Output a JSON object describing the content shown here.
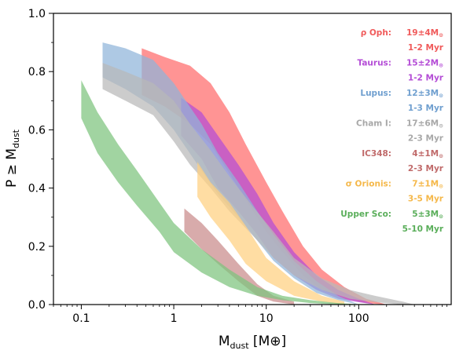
{
  "chart_data": {
    "type": "area",
    "xlabel": {
      "main": "M",
      "sub": "dust",
      "unit": " [M⊕]"
    },
    "ylabel": {
      "main": "P ≥ M",
      "sub": "dust"
    },
    "xscale": "log",
    "xlim": [
      0.05,
      1000
    ],
    "ylim": [
      0,
      1.0
    ],
    "x_ticks": [
      {
        "value": 0.1,
        "label": "0.1"
      },
      {
        "value": 1,
        "label": "1"
      },
      {
        "value": 10,
        "label": "10"
      },
      {
        "value": 100,
        "label": "100"
      }
    ],
    "y_ticks": [
      {
        "value": 0.0,
        "label": "0.0"
      },
      {
        "value": 0.2,
        "label": "0.2"
      },
      {
        "value": 0.4,
        "label": "0.4"
      },
      {
        "value": 0.6,
        "label": "0.6"
      },
      {
        "value": 0.8,
        "label": "0.8"
      },
      {
        "value": 1.0,
        "label": "1.0"
      }
    ],
    "grid": false,
    "legend_position": "right",
    "series": [
      {
        "name": "ρ Oph:",
        "median": "19±4M⊙",
        "age": "1-2 Myr",
        "color": "#ff6b6b",
        "x": [
          0.45,
          0.8,
          1.5,
          2.5,
          4,
          6,
          10,
          15,
          25,
          40,
          70,
          120,
          200
        ],
        "lo": [
          0.72,
          0.68,
          0.62,
          0.55,
          0.45,
          0.36,
          0.25,
          0.18,
          0.1,
          0.05,
          0.02,
          0.005,
          0.0
        ],
        "hi": [
          0.88,
          0.85,
          0.82,
          0.76,
          0.66,
          0.55,
          0.42,
          0.32,
          0.2,
          0.12,
          0.06,
          0.02,
          0.0
        ]
      },
      {
        "name": "Taurus:",
        "median": "15±2M⊙",
        "age": "1-2 Myr",
        "color": "#b44cd6",
        "x": [
          1.2,
          2,
          3,
          5,
          8,
          12,
          20,
          35,
          60,
          100,
          150
        ],
        "lo": [
          0.58,
          0.5,
          0.4,
          0.32,
          0.24,
          0.16,
          0.1,
          0.05,
          0.02,
          0.008,
          0.0
        ],
        "hi": [
          0.71,
          0.66,
          0.58,
          0.48,
          0.38,
          0.28,
          0.18,
          0.1,
          0.05,
          0.02,
          0.0
        ]
      },
      {
        "name": "Lupus:",
        "median": "12±3M⊙",
        "age": "1-3 Myr",
        "color": "#8fb4d9",
        "x": [
          0.17,
          0.3,
          0.6,
          1,
          2,
          3,
          5,
          8,
          12,
          20,
          35,
          60,
          100
        ],
        "lo": [
          0.78,
          0.74,
          0.68,
          0.6,
          0.46,
          0.38,
          0.3,
          0.22,
          0.15,
          0.09,
          0.04,
          0.015,
          0.0
        ],
        "hi": [
          0.9,
          0.88,
          0.84,
          0.76,
          0.62,
          0.52,
          0.42,
          0.32,
          0.24,
          0.15,
          0.08,
          0.03,
          0.0
        ]
      },
      {
        "name": "Cham I:",
        "median": "17±6M⊙",
        "age": "2-3 Myr",
        "color": "#b8b8b8",
        "x": [
          0.17,
          0.3,
          0.6,
          1,
          1.5,
          2.5,
          4,
          7,
          12,
          20,
          40,
          80,
          150,
          300,
          400
        ],
        "lo": [
          0.74,
          0.7,
          0.65,
          0.56,
          0.48,
          0.4,
          0.32,
          0.24,
          0.16,
          0.1,
          0.05,
          0.02,
          0.008,
          0.0,
          0.0
        ],
        "hi": [
          0.83,
          0.8,
          0.76,
          0.7,
          0.62,
          0.53,
          0.44,
          0.34,
          0.25,
          0.16,
          0.09,
          0.05,
          0.03,
          0.01,
          0.0
        ]
      },
      {
        "name": "IC348:",
        "median": "4±1M⊙",
        "age": "2-3 Myr",
        "color": "#c98a8a",
        "x": [
          1.3,
          2,
          3,
          5,
          8,
          12,
          20
        ],
        "lo": [
          0.25,
          0.19,
          0.14,
          0.08,
          0.03,
          0.01,
          0.0
        ],
        "hi": [
          0.33,
          0.28,
          0.22,
          0.14,
          0.07,
          0.03,
          0.01
        ]
      },
      {
        "name": "σ Orionis:",
        "median": "7±1M⊙",
        "age": "3-5 Myr",
        "color": "#ffd080",
        "x": [
          1.8,
          2.5,
          4,
          6,
          10,
          20,
          40,
          70
        ],
        "lo": [
          0.37,
          0.3,
          0.22,
          0.14,
          0.08,
          0.03,
          0.01,
          0.0
        ],
        "hi": [
          0.49,
          0.42,
          0.35,
          0.27,
          0.16,
          0.08,
          0.03,
          0.01
        ]
      },
      {
        "name": "Upper Sco:",
        "median": "5±3M⊙",
        "age": "5-10 Myr",
        "color": "#7dc47d",
        "x": [
          0.1,
          0.15,
          0.25,
          0.4,
          0.7,
          1,
          2,
          4,
          8,
          15,
          30,
          60,
          120
        ],
        "lo": [
          0.64,
          0.52,
          0.42,
          0.34,
          0.25,
          0.18,
          0.11,
          0.06,
          0.03,
          0.015,
          0.005,
          0.0,
          0.0
        ],
        "hi": [
          0.77,
          0.66,
          0.55,
          0.46,
          0.35,
          0.28,
          0.19,
          0.12,
          0.06,
          0.03,
          0.015,
          0.005,
          0.0
        ]
      }
    ]
  }
}
